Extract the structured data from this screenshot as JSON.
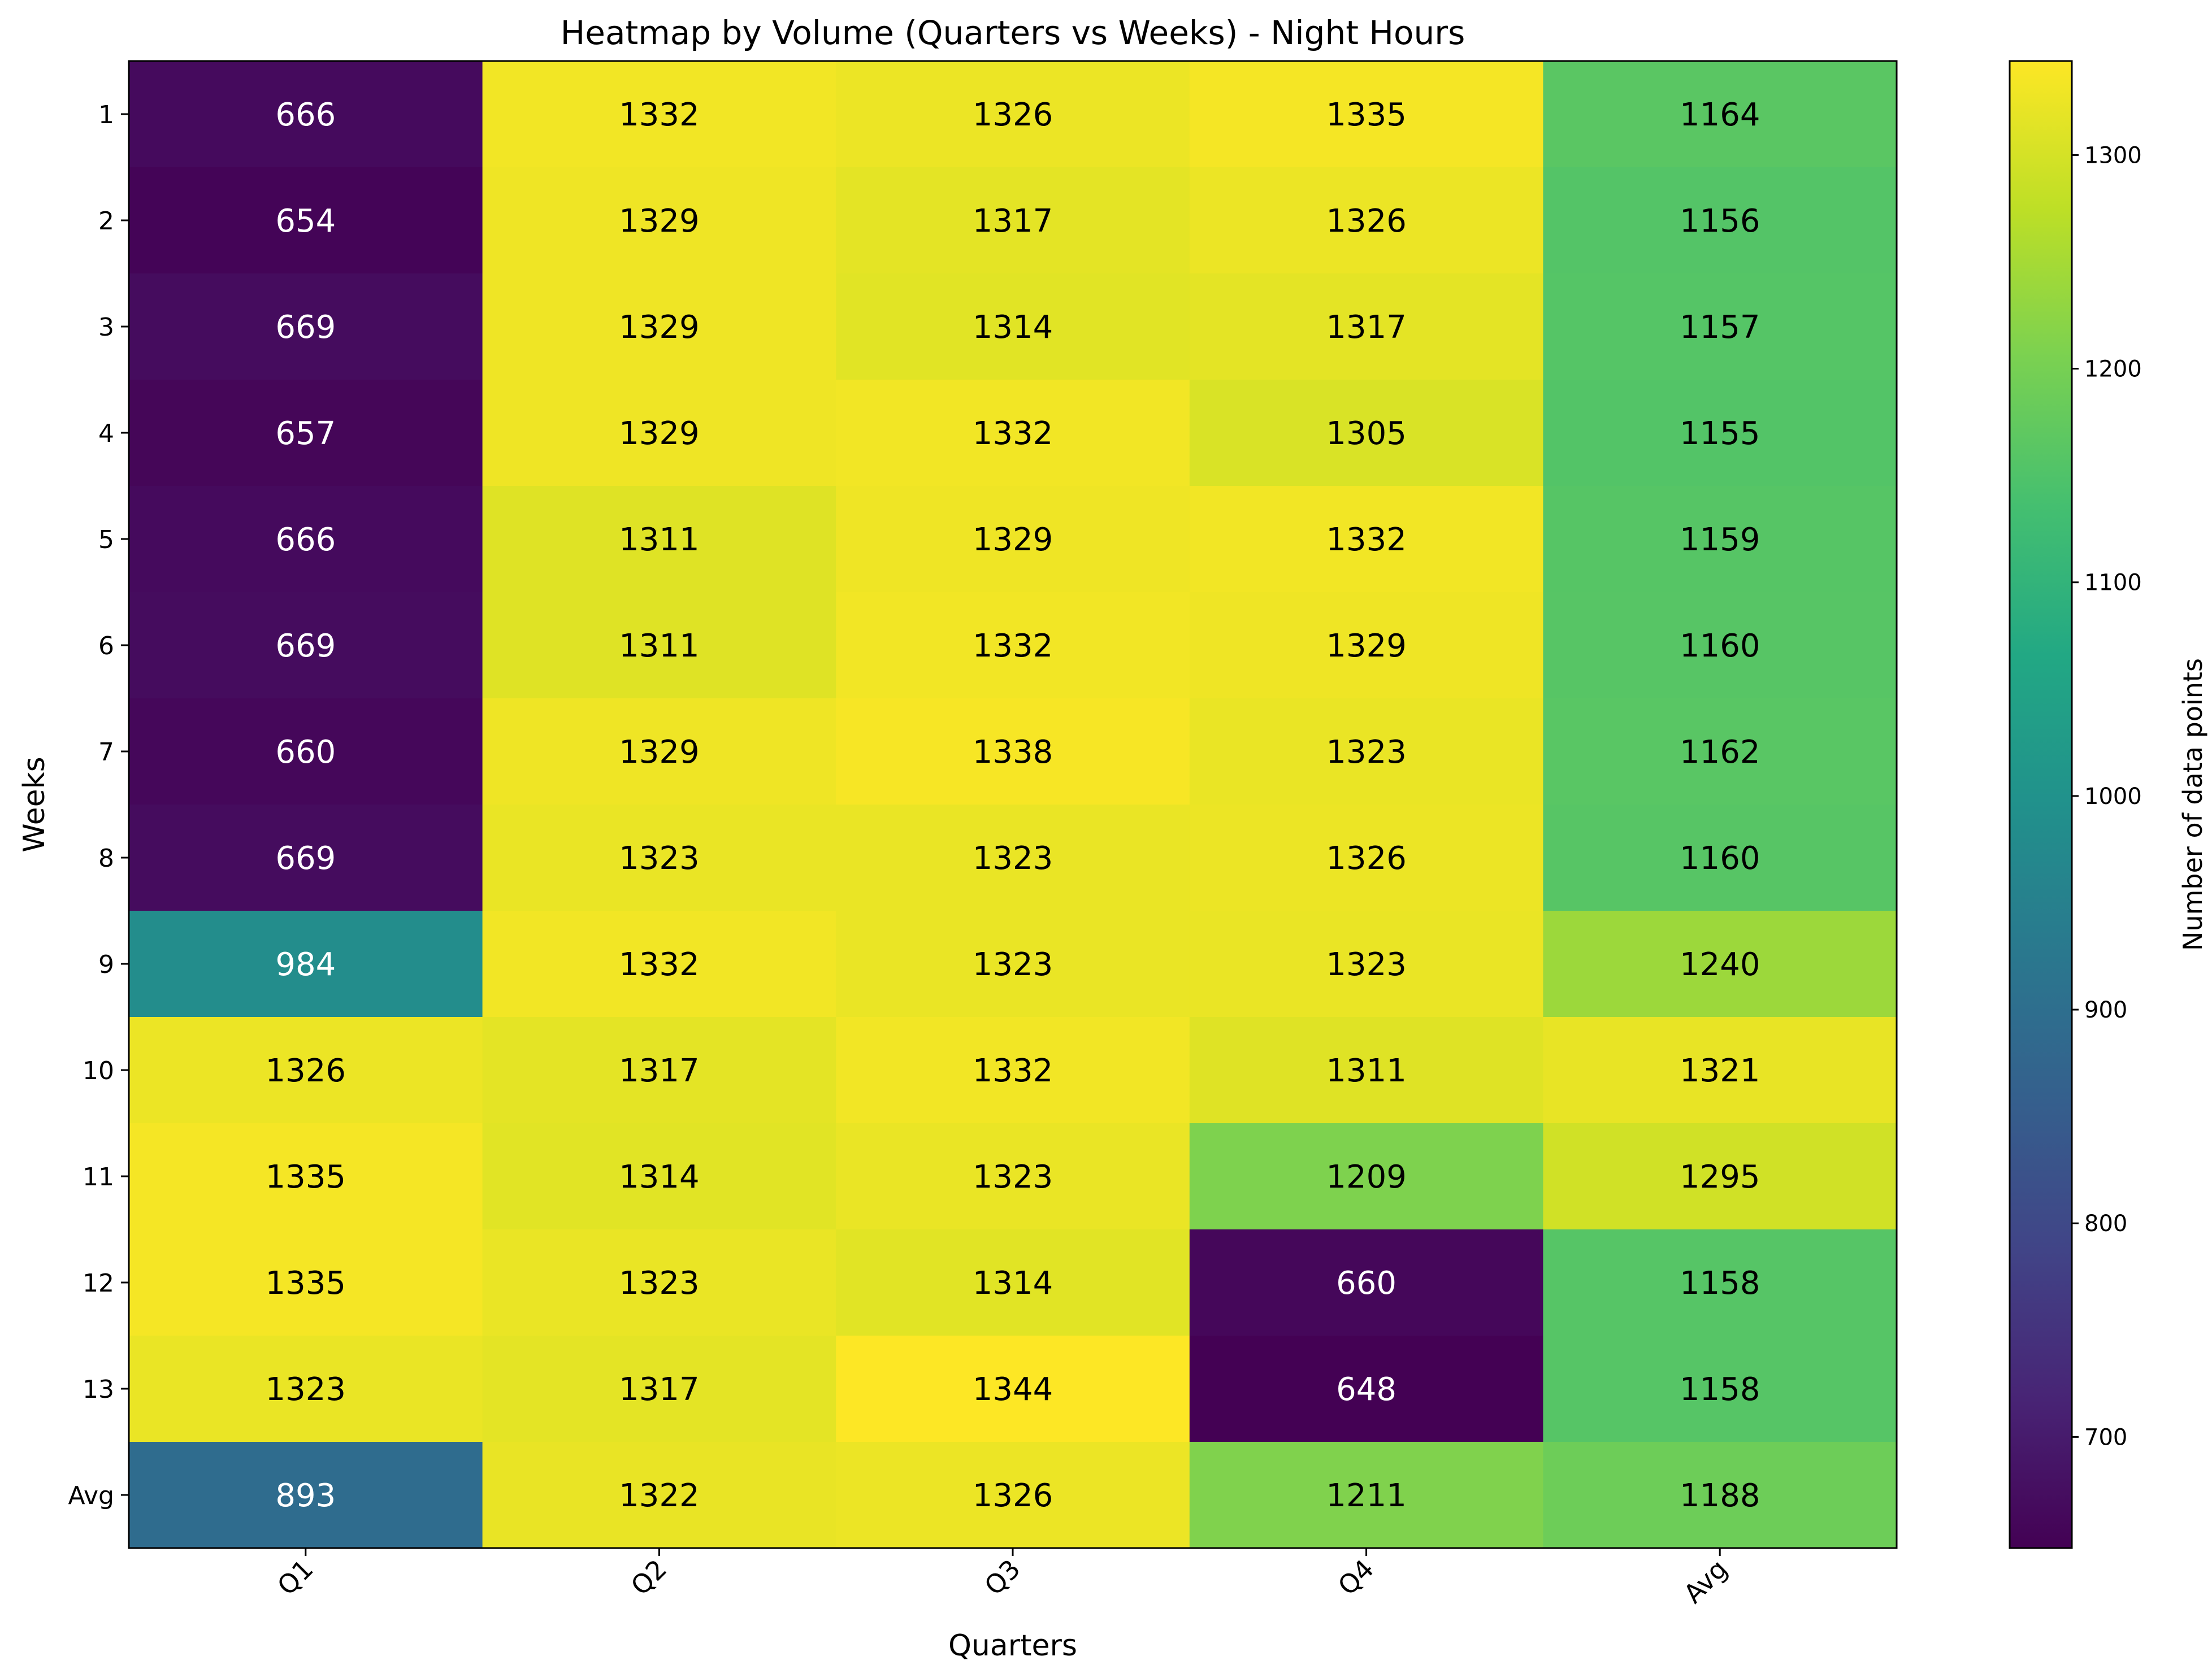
{
  "chart_data": {
    "type": "heatmap",
    "title": "Heatmap by Volume (Quarters vs Weeks) - Night Hours",
    "xlabel": "Quarters",
    "ylabel": "Weeks",
    "x_categories": [
      "Q1",
      "Q2",
      "Q3",
      "Q4",
      "Avg"
    ],
    "y_categories": [
      "1",
      "2",
      "3",
      "4",
      "5",
      "6",
      "7",
      "8",
      "9",
      "10",
      "11",
      "12",
      "13",
      "Avg"
    ],
    "values": [
      [
        666,
        1332,
        1326,
        1335,
        1164
      ],
      [
        654,
        1329,
        1317,
        1326,
        1156
      ],
      [
        669,
        1329,
        1314,
        1317,
        1157
      ],
      [
        657,
        1329,
        1332,
        1305,
        1155
      ],
      [
        666,
        1311,
        1329,
        1332,
        1159
      ],
      [
        669,
        1311,
        1332,
        1329,
        1160
      ],
      [
        660,
        1329,
        1338,
        1323,
        1162
      ],
      [
        669,
        1323,
        1323,
        1326,
        1160
      ],
      [
        984,
        1332,
        1323,
        1323,
        1240
      ],
      [
        1326,
        1317,
        1332,
        1311,
        1321
      ],
      [
        1335,
        1314,
        1323,
        1209,
        1295
      ],
      [
        1335,
        1323,
        1314,
        660,
        1158
      ],
      [
        1323,
        1317,
        1344,
        648,
        1158
      ],
      [
        893,
        1322,
        1326,
        1211,
        1188
      ]
    ],
    "colormap": "viridis",
    "color_range": [
      648,
      1344
    ],
    "colorbar": {
      "label": "Number of data points",
      "ticks": [
        700,
        800,
        900,
        1000,
        1100,
        1200,
        1300
      ]
    },
    "grid": false,
    "legend": "none"
  }
}
